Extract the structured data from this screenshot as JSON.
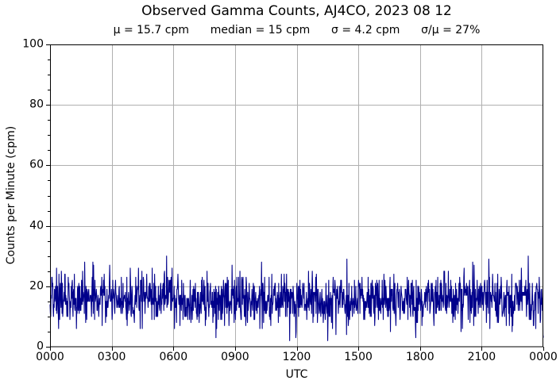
{
  "chart_data": {
    "type": "line",
    "title": "Observed Gamma Counts, AJ4CO, 2023 08 12",
    "stats_line": "μ = 15.7 cpm      median = 15 cpm      σ = 4.2 cpm      σ/μ = 27%",
    "stats": {
      "mean_cpm": 15.7,
      "median_cpm": 15,
      "sigma_cpm": 4.2,
      "sigma_over_mean_percent": 27
    },
    "xlabel": "UTC",
    "ylabel": "Counts per Minute (cpm)",
    "ylim": [
      0,
      100
    ],
    "xlim_minutes": [
      0,
      1440
    ],
    "y_major_ticks": [
      0,
      20,
      40,
      60,
      80,
      100
    ],
    "y_tick_labels": [
      "0",
      "20",
      "40",
      "60",
      "80",
      "100"
    ],
    "y_minor_tick_step": 5,
    "x_tick_labels": [
      "0000",
      "0300",
      "0600",
      "0900",
      "1200",
      "1500",
      "1800",
      "2100",
      "0000"
    ],
    "grid": true,
    "legend": "none",
    "line_color": "#00008B",
    "grid_color": "#b0b0b0",
    "axis_color": "#000000",
    "background_color": "#ffffff",
    "series": [
      {
        "name": "observed gamma counts",
        "sample_interval_minutes": 1,
        "n_points": 1440,
        "approximation": {
          "method": "seeded-gaussian-integer-counts",
          "seed": 20230812,
          "mean": 15.7,
          "sigma": 4.2,
          "clip_min": 2,
          "clip_max": 30
        },
        "notable_points": [
          [
            340,
            30
          ],
          [
            531,
            27
          ],
          [
            810,
            2
          ],
          [
            866,
            29
          ],
          [
            1233,
            28
          ],
          [
            1280,
            29
          ]
        ]
      }
    ]
  }
}
